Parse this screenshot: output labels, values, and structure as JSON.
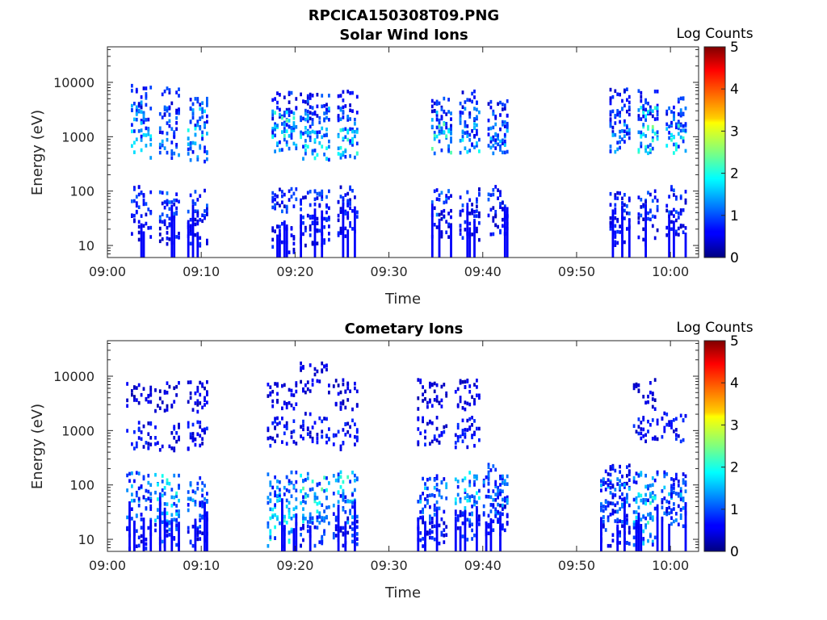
{
  "figure": {
    "title": "RPCICA150308T09.PNG"
  },
  "chart_data": [
    {
      "type": "heatmap",
      "title": "Solar Wind Ions",
      "xlabel": "Time",
      "ylabel": "Energy (eV)",
      "x_tick_labels": [
        "09:00",
        "09:10",
        "09:20",
        "09:30",
        "09:40",
        "09:50",
        "10:00"
      ],
      "x_range_minutes": [
        0,
        63
      ],
      "y_tick_labels": [
        "10",
        "100",
        "1000",
        "10000"
      ],
      "y_scale": "log",
      "y_range": [
        6,
        45000
      ],
      "colorbar": {
        "label": "Log Counts",
        "min": 0,
        "max": 5,
        "ticks": [
          "0",
          "1",
          "2",
          "3",
          "4",
          "5"
        ]
      },
      "bursts": [
        {
          "t_start": 2.5,
          "t_end": 4.5,
          "log_counts": 1.8,
          "energy_bands": [
            [
              5000,
              1
            ],
            [
              2500,
              1.5
            ],
            [
              800,
              1.8
            ],
            [
              70,
              1.0
            ],
            [
              25,
              0.8
            ]
          ]
        },
        {
          "t_start": 5.5,
          "t_end": 7.5,
          "log_counts": 1.5,
          "energy_bands": [
            [
              4500,
              1
            ],
            [
              2000,
              1.2
            ],
            [
              800,
              1.5
            ],
            [
              60,
              1.2
            ],
            [
              20,
              0.8
            ]
          ]
        },
        {
          "t_start": 8.5,
          "t_end": 10.5,
          "log_counts": 2.0,
          "energy_bands": [
            [
              3000,
              1.2
            ],
            [
              2000,
              2.0
            ],
            [
              700,
              1.5
            ],
            [
              60,
              1.0
            ],
            [
              20,
              0.8
            ]
          ]
        },
        {
          "t_start": 17.5,
          "t_end": 20.0,
          "log_counts": 2.2,
          "energy_bands": [
            [
              4000,
              1
            ],
            [
              2000,
              2.2
            ],
            [
              1000,
              1.5
            ],
            [
              70,
              1.0
            ],
            [
              15,
              0.8
            ]
          ]
        },
        {
          "t_start": 20.5,
          "t_end": 23.5,
          "log_counts": 1.8,
          "energy_bands": [
            [
              3500,
              1
            ],
            [
              2000,
              1.5
            ],
            [
              700,
              1.8
            ],
            [
              60,
              1.0
            ],
            [
              20,
              0.8
            ]
          ]
        },
        {
          "t_start": 24.5,
          "t_end": 26.5,
          "log_counts": 2.0,
          "energy_bands": [
            [
              4000,
              1
            ],
            [
              2000,
              1.3
            ],
            [
              800,
              2.0
            ],
            [
              70,
              1.0
            ],
            [
              30,
              0.8
            ]
          ]
        },
        {
          "t_start": 34.5,
          "t_end": 36.5,
          "log_counts": 2.2,
          "energy_bands": [
            [
              3000,
              1
            ],
            [
              2000,
              1.5
            ],
            [
              1000,
              2.2
            ],
            [
              60,
              1.2
            ],
            [
              25,
              0.8
            ]
          ]
        },
        {
          "t_start": 37.5,
          "t_end": 39.5,
          "log_counts": 1.8,
          "energy_bands": [
            [
              4000,
              1
            ],
            [
              2000,
              1.3
            ],
            [
              1000,
              1.8
            ],
            [
              70,
              1.0
            ],
            [
              25,
              0.8
            ]
          ]
        },
        {
          "t_start": 40.5,
          "t_end": 42.5,
          "log_counts": 1.5,
          "energy_bands": [
            [
              3000,
              1
            ],
            [
              1500,
              1.2
            ],
            [
              1000,
              1.5
            ],
            [
              70,
              1.0
            ],
            [
              30,
              0.8
            ]
          ]
        },
        {
          "t_start": 53.5,
          "t_end": 55.5,
          "log_counts": 1.5,
          "energy_bands": [
            [
              4500,
              1
            ],
            [
              2000,
              1.2
            ],
            [
              1000,
              1.5
            ],
            [
              60,
              1.0
            ],
            [
              20,
              0.8
            ]
          ]
        },
        {
          "t_start": 56.5,
          "t_end": 58.5,
          "log_counts": 2.3,
          "energy_bands": [
            [
              4000,
              1
            ],
            [
              2000,
              2.3
            ],
            [
              1000,
              2.0
            ],
            [
              60,
              1.0
            ],
            [
              20,
              0.8
            ]
          ]
        },
        {
          "t_start": 59.5,
          "t_end": 61.5,
          "log_counts": 2.0,
          "energy_bands": [
            [
              3000,
              1
            ],
            [
              2000,
              1.5
            ],
            [
              1000,
              2.0
            ],
            [
              70,
              1.0
            ],
            [
              30,
              0.8
            ]
          ]
        }
      ]
    },
    {
      "type": "heatmap",
      "title": "Cometary Ions",
      "xlabel": "Time",
      "ylabel": "Energy (eV)",
      "x_tick_labels": [
        "09:00",
        "09:10",
        "09:20",
        "09:30",
        "09:40",
        "09:50",
        "10:00"
      ],
      "x_range_minutes": [
        0,
        63
      ],
      "y_tick_labels": [
        "10",
        "100",
        "1000",
        "10000"
      ],
      "y_scale": "log",
      "y_range": [
        6,
        45000
      ],
      "colorbar": {
        "label": "Log Counts",
        "min": 0,
        "max": 5,
        "ticks": [
          "0",
          "1",
          "2",
          "3",
          "4",
          "5"
        ]
      },
      "bursts": [
        {
          "t_start": 2.0,
          "t_end": 4.5,
          "log_counts": 1.5,
          "energy_bands": [
            [
              5000,
              0.6
            ],
            [
              900,
              0.8
            ],
            [
              100,
              1.5
            ],
            [
              40,
              1.2
            ],
            [
              10,
              0.8
            ]
          ]
        },
        {
          "t_start": 5.0,
          "t_end": 7.5,
          "log_counts": 2.0,
          "energy_bands": [
            [
              4500,
              0.6
            ],
            [
              800,
              0.8
            ],
            [
              90,
              2.0
            ],
            [
              40,
              1.8
            ],
            [
              15,
              1.2
            ]
          ]
        },
        {
          "t_start": 8.5,
          "t_end": 10.5,
          "log_counts": 1.5,
          "energy_bands": [
            [
              4500,
              0.6
            ],
            [
              900,
              0.8
            ],
            [
              80,
              1.5
            ],
            [
              30,
              1.2
            ],
            [
              10,
              0.8
            ]
          ]
        },
        {
          "t_start": 17.0,
          "t_end": 20.0,
          "log_counts": 2.0,
          "energy_bands": [
            [
              5000,
              0.6
            ],
            [
              1000,
              0.8
            ],
            [
              100,
              1.5
            ],
            [
              40,
              1.8
            ],
            [
              15,
              2.0
            ]
          ]
        },
        {
          "t_start": 20.5,
          "t_end": 23.5,
          "log_counts": 2.2,
          "energy_bands": [
            [
              10000,
              0.6
            ],
            [
              1200,
              0.8
            ],
            [
              100,
              2.2
            ],
            [
              40,
              1.8
            ],
            [
              15,
              1.2
            ]
          ]
        },
        {
          "t_start": 24.0,
          "t_end": 26.5,
          "log_counts": 2.0,
          "energy_bands": [
            [
              5000,
              0.6
            ],
            [
              900,
              0.8
            ],
            [
              100,
              2.0
            ],
            [
              40,
              1.5
            ],
            [
              15,
              1.0
            ]
          ]
        },
        {
          "t_start": 33.0,
          "t_end": 36.0,
          "log_counts": 1.5,
          "energy_bands": [
            [
              5000,
              0.6
            ],
            [
              1000,
              0.8
            ],
            [
              100,
              1.5
            ],
            [
              40,
              1.2
            ],
            [
              15,
              0.8
            ]
          ]
        },
        {
          "t_start": 37.0,
          "t_end": 39.5,
          "log_counts": 1.8,
          "energy_bands": [
            [
              5000,
              0.6
            ],
            [
              1000,
              0.8
            ],
            [
              100,
              1.8
            ],
            [
              40,
              1.5
            ],
            [
              20,
              1.0
            ]
          ]
        },
        {
          "t_start": 40.0,
          "t_end": 42.5,
          "log_counts": 1.5,
          "energy_bands": [
            [
              150,
              1.2
            ],
            [
              80,
              1.5
            ],
            [
              40,
              1.2
            ],
            [
              25,
              0.8
            ]
          ]
        },
        {
          "t_start": 52.5,
          "t_end": 55.5,
          "log_counts": 1.5,
          "energy_bands": [
            [
              150,
              0.8
            ],
            [
              80,
              1.5
            ],
            [
              40,
              1.2
            ],
            [
              15,
              1.0
            ]
          ]
        },
        {
          "t_start": 56.0,
          "t_end": 58.5,
          "log_counts": 2.0,
          "energy_bands": [
            [
              5000,
              0.6
            ],
            [
              1200,
              0.8
            ],
            [
              100,
              1.5
            ],
            [
              40,
              2.0
            ],
            [
              15,
              1.5
            ]
          ]
        },
        {
          "t_start": 59.0,
          "t_end": 61.5,
          "log_counts": 1.5,
          "energy_bands": [
            [
              1200,
              0.8
            ],
            [
              100,
              1.2
            ],
            [
              60,
              1.5
            ],
            [
              30,
              1.2
            ]
          ]
        }
      ]
    }
  ]
}
